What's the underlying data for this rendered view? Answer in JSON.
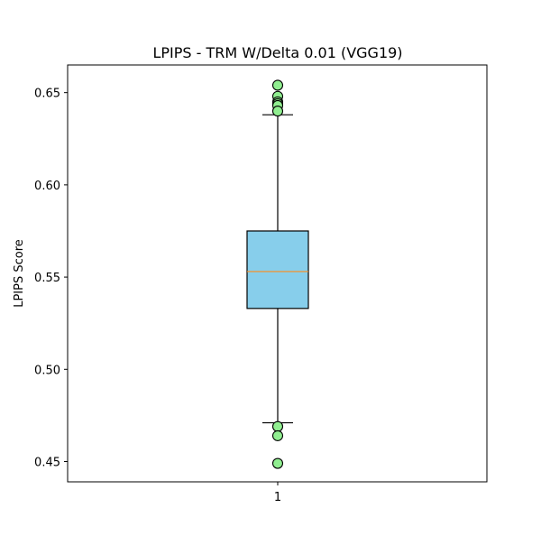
{
  "chart_data": {
    "type": "box",
    "title": "LPIPS - TRM W/Delta 0.01 (VGG19)",
    "xlabel": "",
    "ylabel": "LPIPS Score",
    "ylim": [
      0.439,
      0.665
    ],
    "grid": false,
    "categories": [
      "1"
    ],
    "yticks": [
      0.45,
      0.5,
      0.55,
      0.6,
      0.65
    ],
    "ytick_labels": [
      "0.45",
      "0.50",
      "0.55",
      "0.60",
      "0.65"
    ],
    "boxes": [
      {
        "label": "1",
        "whisker_low": 0.471,
        "q1": 0.533,
        "median": 0.553,
        "q3": 0.575,
        "whisker_high": 0.638,
        "outliers": [
          0.654,
          0.648,
          0.645,
          0.644,
          0.643,
          0.64,
          0.469,
          0.464,
          0.449
        ]
      }
    ],
    "colors": {
      "box_fill": "#87CEEB",
      "box_edge": "#000000",
      "median": "#FF8C1A",
      "whisker": "#000000",
      "outlier_fill": "#90EE90",
      "outlier_edge": "#000000"
    }
  }
}
